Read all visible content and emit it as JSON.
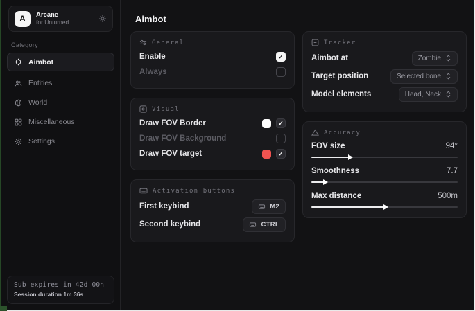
{
  "app": {
    "name": "Arcane",
    "subtitle": "for Unturned",
    "logo_letter": "A"
  },
  "sidebar": {
    "category_label": "Category",
    "items": [
      {
        "label": "Aimbot",
        "active": true
      },
      {
        "label": "Entities",
        "active": false
      },
      {
        "label": "World",
        "active": false
      },
      {
        "label": "Miscellaneous",
        "active": false
      },
      {
        "label": "Settings",
        "active": false
      }
    ],
    "footer": {
      "line1": "Sub expires in 42d 00h",
      "line2": "Session duration 1m 36s"
    }
  },
  "page": {
    "title": "Aimbot"
  },
  "sections": {
    "general": {
      "title": "General",
      "rows": [
        {
          "label": "Enable",
          "checked": true
        },
        {
          "label": "Always",
          "checked": false
        }
      ]
    },
    "visual": {
      "title": "Visual",
      "rows": [
        {
          "label": "Draw FOV Border",
          "swatch": "#ffffff",
          "checked": true
        },
        {
          "label": "Draw FOV Background",
          "checked": false
        },
        {
          "label": "Draw FOV target",
          "swatch": "#ef5350",
          "checked": true
        }
      ]
    },
    "activation": {
      "title": "Activation buttons",
      "rows": [
        {
          "label": "First keybind",
          "key": "M2"
        },
        {
          "label": "Second keybind",
          "key": "CTRL"
        }
      ]
    },
    "tracker": {
      "title": "Tracker",
      "rows": [
        {
          "label": "Aimbot at",
          "value": "Zombie"
        },
        {
          "label": "Target position",
          "value": "Selected bone"
        },
        {
          "label": "Model elements",
          "value": "Head, Neck"
        }
      ]
    },
    "accuracy": {
      "title": "Accuracy",
      "rows": [
        {
          "label": "FOV size",
          "value": "94°",
          "percent": 26
        },
        {
          "label": "Smoothness",
          "value": "7.7",
          "percent": 9
        },
        {
          "label": "Max distance",
          "value": "500m",
          "percent": 50
        }
      ]
    }
  },
  "colors": {
    "accent_red": "#ef5350",
    "card_bg": "#19191c",
    "window_bg": "#121214",
    "check_light": "#f5f5f5"
  }
}
